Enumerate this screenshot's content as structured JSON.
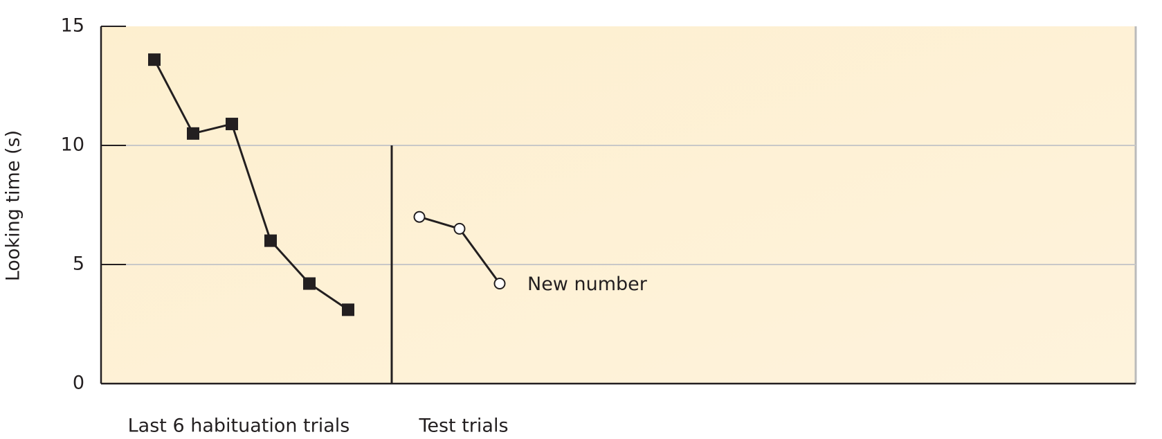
{
  "chart_data": {
    "type": "line",
    "ylabel": "Looking time (s)",
    "ylim": [
      0,
      15
    ],
    "yticks": [
      0,
      5,
      10,
      15
    ],
    "grid": true,
    "series": [
      {
        "name": "Last 6 habituation trials",
        "color": "#231f20",
        "marker": "square",
        "values": [
          13.6,
          10.5,
          10.9,
          6.0,
          4.2,
          3.1
        ]
      },
      {
        "name": "Test trials",
        "color": "#ffffff",
        "marker": "circle",
        "values": [
          7.0,
          6.5,
          4.2
        ]
      }
    ],
    "annotation": "New number"
  }
}
